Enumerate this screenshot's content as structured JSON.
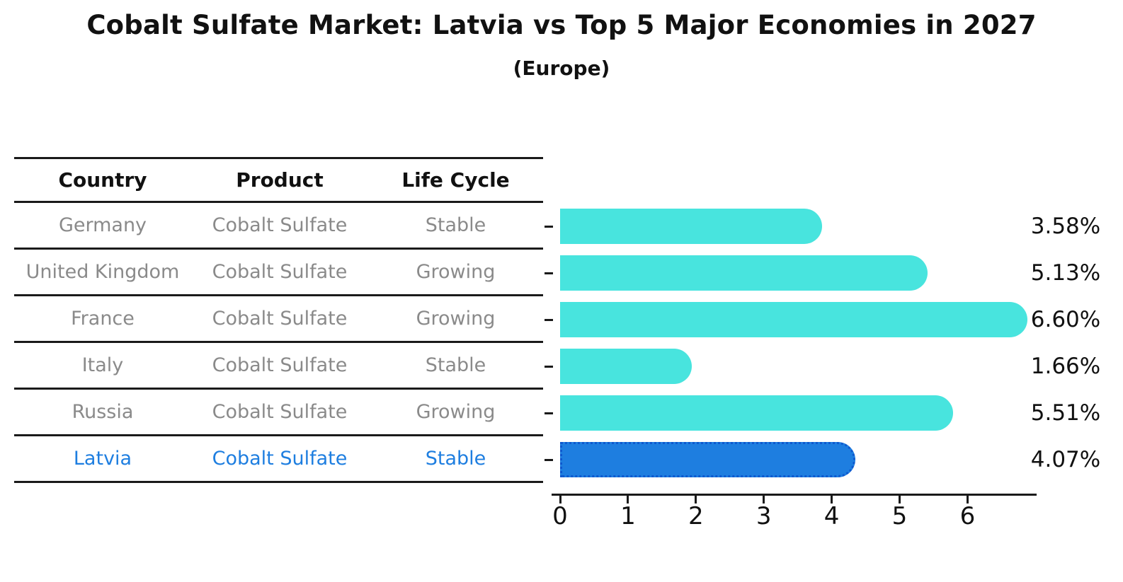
{
  "title": "Cobalt Sulfate Market: Latvia vs Top 5 Major Economies in 2027",
  "subtitle": "(Europe)",
  "table": {
    "headers": [
      "Country",
      "Product",
      "Life Cycle"
    ],
    "rows": [
      {
        "country": "Germany",
        "product": "Cobalt Sulfate",
        "life_cycle": "Stable",
        "highlight": false
      },
      {
        "country": "United Kingdom",
        "product": "Cobalt Sulfate",
        "life_cycle": "Growing",
        "highlight": false
      },
      {
        "country": "France",
        "product": "Cobalt Sulfate",
        "life_cycle": "Growing",
        "highlight": false
      },
      {
        "country": "Italy",
        "product": "Cobalt Sulfate",
        "life_cycle": "Stable",
        "highlight": false
      },
      {
        "country": "Russia",
        "product": "Cobalt Sulfate",
        "life_cycle": "Growing",
        "highlight": false
      },
      {
        "country": "Latvia",
        "product": "Cobalt Sulfate",
        "life_cycle": "Stable",
        "highlight": true
      }
    ]
  },
  "chart_data": {
    "type": "bar",
    "orientation": "horizontal",
    "title": "Cobalt Sulfate Market: Latvia vs Top 5 Major Economies in 2027 (Europe)",
    "categories": [
      "Germany",
      "United Kingdom",
      "France",
      "Italy",
      "Russia",
      "Latvia"
    ],
    "values": [
      3.58,
      5.13,
      6.6,
      1.66,
      5.51,
      4.07
    ],
    "value_labels": [
      "3.58%",
      "5.13%",
      "6.60%",
      "1.66%",
      "5.51%",
      "4.07%"
    ],
    "unit": "%",
    "highlight_index": 5,
    "x_ticks": [
      "0",
      "1",
      "2",
      "3",
      "4",
      "5",
      "6"
    ],
    "xlim": [
      0,
      7
    ],
    "grid": false,
    "legend": "none",
    "bar_style": "rounded-right-cap"
  },
  "colors": {
    "bar_default": "#48E4DE",
    "bar_highlight": "#1E7EE0",
    "bar_highlight_border": "#0E59CE",
    "text": "#111111",
    "muted_text": "#8a8a8a",
    "line": "#1a1a1a",
    "background": "#ffffff"
  }
}
